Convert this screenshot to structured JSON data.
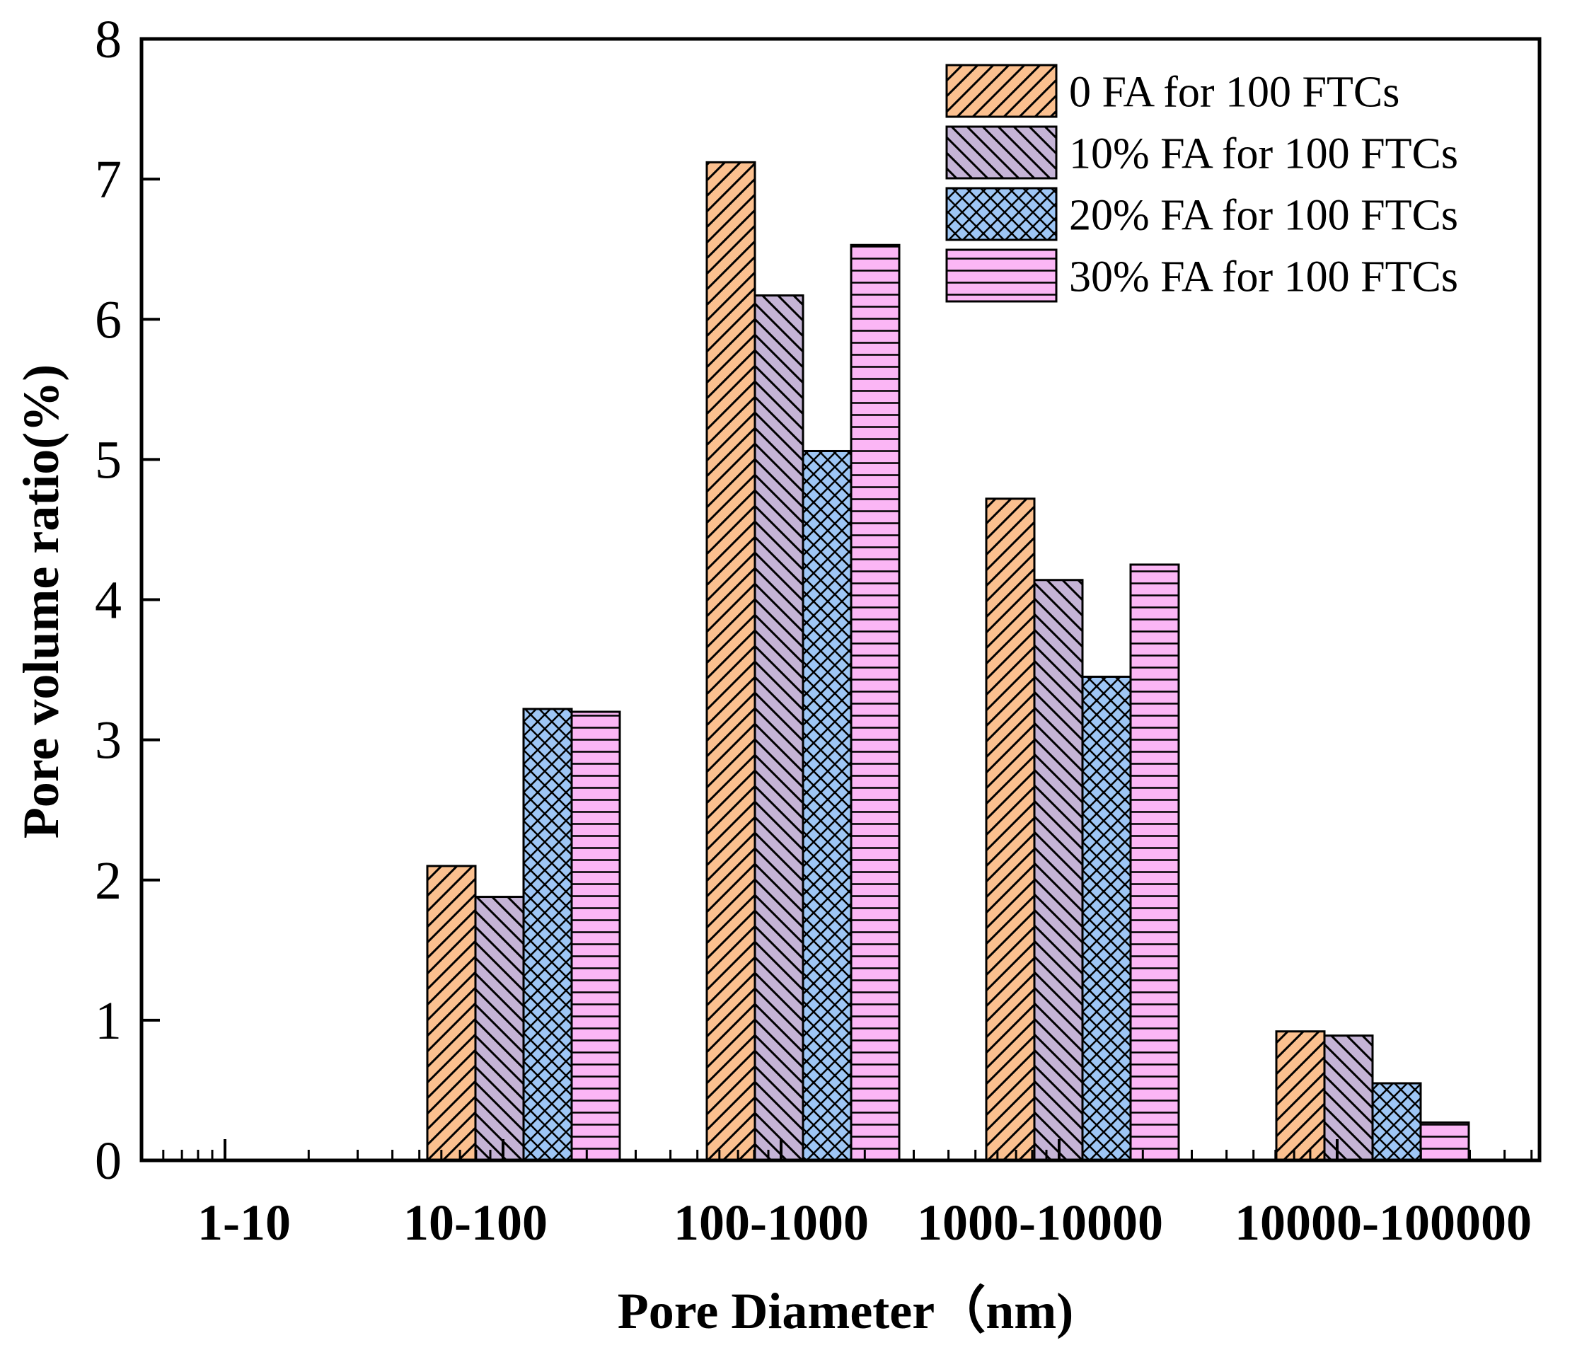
{
  "chart_data": {
    "type": "bar",
    "title": "",
    "xlabel": "Pore Diameter（nm)",
    "ylabel": "Pore volume ratio(%)",
    "ylim": [
      0,
      8
    ],
    "yticks": [
      "0",
      "1",
      "2",
      "3",
      "4",
      "5",
      "6",
      "7",
      "8"
    ],
    "categories": [
      "1-10",
      "10-100",
      "100-1000",
      "1000-10000",
      "10000-100000"
    ],
    "legend_position": "top-right",
    "series": [
      {
        "name": "0 FA for 100 FTCs",
        "color": "#fbc08f",
        "pattern": "diagonal-up",
        "values": [
          0,
          2.1,
          7.12,
          4.72,
          0.92
        ]
      },
      {
        "name": "10% FA for 100 FTCs",
        "color": "#c5b4d6",
        "pattern": "diagonal-down",
        "values": [
          0,
          1.88,
          6.17,
          4.14,
          0.89
        ]
      },
      {
        "name": "20% FA for 100 FTCs",
        "color": "#9ec6f5",
        "pattern": "crosshatch",
        "values": [
          0,
          3.22,
          5.06,
          3.45,
          0.55
        ]
      },
      {
        "name": "30% FA for 100 FTCs",
        "color": "#fbb6f5",
        "pattern": "horizontal",
        "values": [
          0,
          3.2,
          6.53,
          4.25,
          0.27
        ]
      }
    ]
  }
}
